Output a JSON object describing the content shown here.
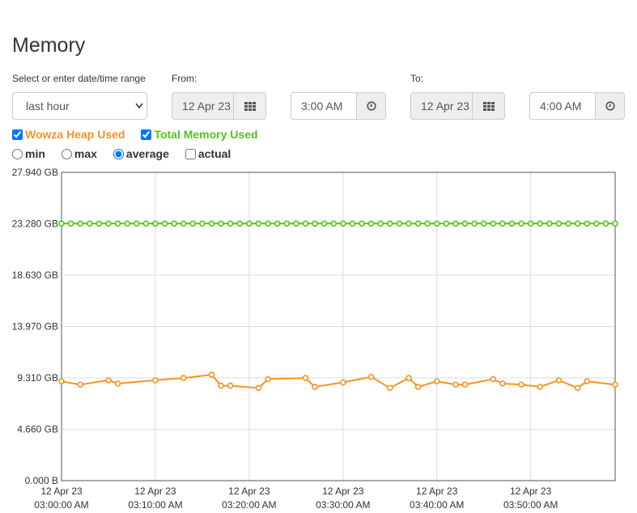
{
  "page": {
    "title": "Memory"
  },
  "range": {
    "label": "Select or enter date/time range",
    "selected": "last hour"
  },
  "from": {
    "label": "From:",
    "date": "12 Apr 23",
    "time": "3:00 AM"
  },
  "to": {
    "label": "To:",
    "date": "12 Apr 23",
    "time": "4:00 AM"
  },
  "series_toggles": [
    {
      "label": "Wowza Heap Used",
      "checked": true,
      "color": "#f7931e"
    },
    {
      "label": "Total Memory Used",
      "checked": true,
      "color": "#52c41a"
    }
  ],
  "modes": [
    {
      "label": "min",
      "checked": false
    },
    {
      "label": "max",
      "checked": false
    },
    {
      "label": "average",
      "checked": true
    },
    {
      "label": "actual",
      "checked": false
    }
  ],
  "chart_data": {
    "type": "line",
    "title": "",
    "xlabel": "",
    "ylabel": "",
    "grid": true,
    "y_ticks": [
      "0.000 B",
      "4.660 GB",
      "9.310 GB",
      "13.970 GB",
      "18.630 GB",
      "23.280 GB",
      "27.940 GB"
    ],
    "ylim_gb": [
      0,
      27.94
    ],
    "x_ticks": [
      {
        "date": "12 Apr 23",
        "time": "03:00:00 AM"
      },
      {
        "date": "12 Apr 23",
        "time": "03:10:00 AM"
      },
      {
        "date": "12 Apr 23",
        "time": "03:20:00 AM"
      },
      {
        "date": "12 Apr 23",
        "time": "03:30:00 AM"
      },
      {
        "date": "12 Apr 23",
        "time": "03:40:00 AM"
      },
      {
        "date": "12 Apr 23",
        "time": "03:50:00 AM"
      }
    ],
    "xlim_min": [
      0,
      59
    ],
    "series": [
      {
        "name": "Total Memory Used",
        "color": "#52c41a",
        "points": [
          [
            0,
            23.3
          ],
          [
            1,
            23.3
          ],
          [
            2,
            23.3
          ],
          [
            3,
            23.3
          ],
          [
            4,
            23.3
          ],
          [
            5,
            23.3
          ],
          [
            6,
            23.3
          ],
          [
            7,
            23.3
          ],
          [
            8,
            23.3
          ],
          [
            9,
            23.3
          ],
          [
            10,
            23.3
          ],
          [
            11,
            23.3
          ],
          [
            12,
            23.3
          ],
          [
            13,
            23.3
          ],
          [
            14,
            23.3
          ],
          [
            15,
            23.3
          ],
          [
            16,
            23.3
          ],
          [
            17,
            23.3
          ],
          [
            18,
            23.3
          ],
          [
            19,
            23.3
          ],
          [
            20,
            23.3
          ],
          [
            21,
            23.3
          ],
          [
            22,
            23.3
          ],
          [
            23,
            23.3
          ],
          [
            24,
            23.3
          ],
          [
            25,
            23.3
          ],
          [
            26,
            23.3
          ],
          [
            27,
            23.3
          ],
          [
            28,
            23.3
          ],
          [
            29,
            23.3
          ],
          [
            30,
            23.3
          ],
          [
            31,
            23.3
          ],
          [
            32,
            23.3
          ],
          [
            33,
            23.3
          ],
          [
            34,
            23.3
          ],
          [
            35,
            23.3
          ],
          [
            36,
            23.3
          ],
          [
            37,
            23.3
          ],
          [
            38,
            23.3
          ],
          [
            39,
            23.3
          ],
          [
            40,
            23.3
          ],
          [
            41,
            23.3
          ],
          [
            42,
            23.3
          ],
          [
            43,
            23.3
          ],
          [
            44,
            23.3
          ],
          [
            45,
            23.3
          ],
          [
            46,
            23.3
          ],
          [
            47,
            23.3
          ],
          [
            48,
            23.3
          ],
          [
            49,
            23.3
          ],
          [
            50,
            23.3
          ],
          [
            51,
            23.3
          ],
          [
            52,
            23.3
          ],
          [
            53,
            23.3
          ],
          [
            54,
            23.3
          ],
          [
            55,
            23.3
          ],
          [
            56,
            23.3
          ],
          [
            57,
            23.3
          ],
          [
            58,
            23.3
          ],
          [
            59,
            23.3
          ]
        ]
      },
      {
        "name": "Wowza Heap Used",
        "color": "#f7931e",
        "points": [
          [
            0,
            9.0
          ],
          [
            2,
            8.7
          ],
          [
            5,
            9.1
          ],
          [
            6,
            8.8
          ],
          [
            10,
            9.1
          ],
          [
            13,
            9.3
          ],
          [
            16,
            9.6
          ],
          [
            17,
            8.6
          ],
          [
            18,
            8.6
          ],
          [
            21,
            8.4
          ],
          [
            22,
            9.2
          ],
          [
            26,
            9.3
          ],
          [
            27,
            8.5
          ],
          [
            30,
            8.9
          ],
          [
            33,
            9.4
          ],
          [
            35,
            8.4
          ],
          [
            37,
            9.3
          ],
          [
            38,
            8.5
          ],
          [
            40,
            9.0
          ],
          [
            42,
            8.7
          ],
          [
            43,
            8.7
          ],
          [
            46,
            9.2
          ],
          [
            47,
            8.8
          ],
          [
            49,
            8.7
          ],
          [
            51,
            8.5
          ],
          [
            53,
            9.1
          ],
          [
            55,
            8.4
          ],
          [
            56,
            9.0
          ],
          [
            59,
            8.7
          ]
        ]
      }
    ]
  }
}
